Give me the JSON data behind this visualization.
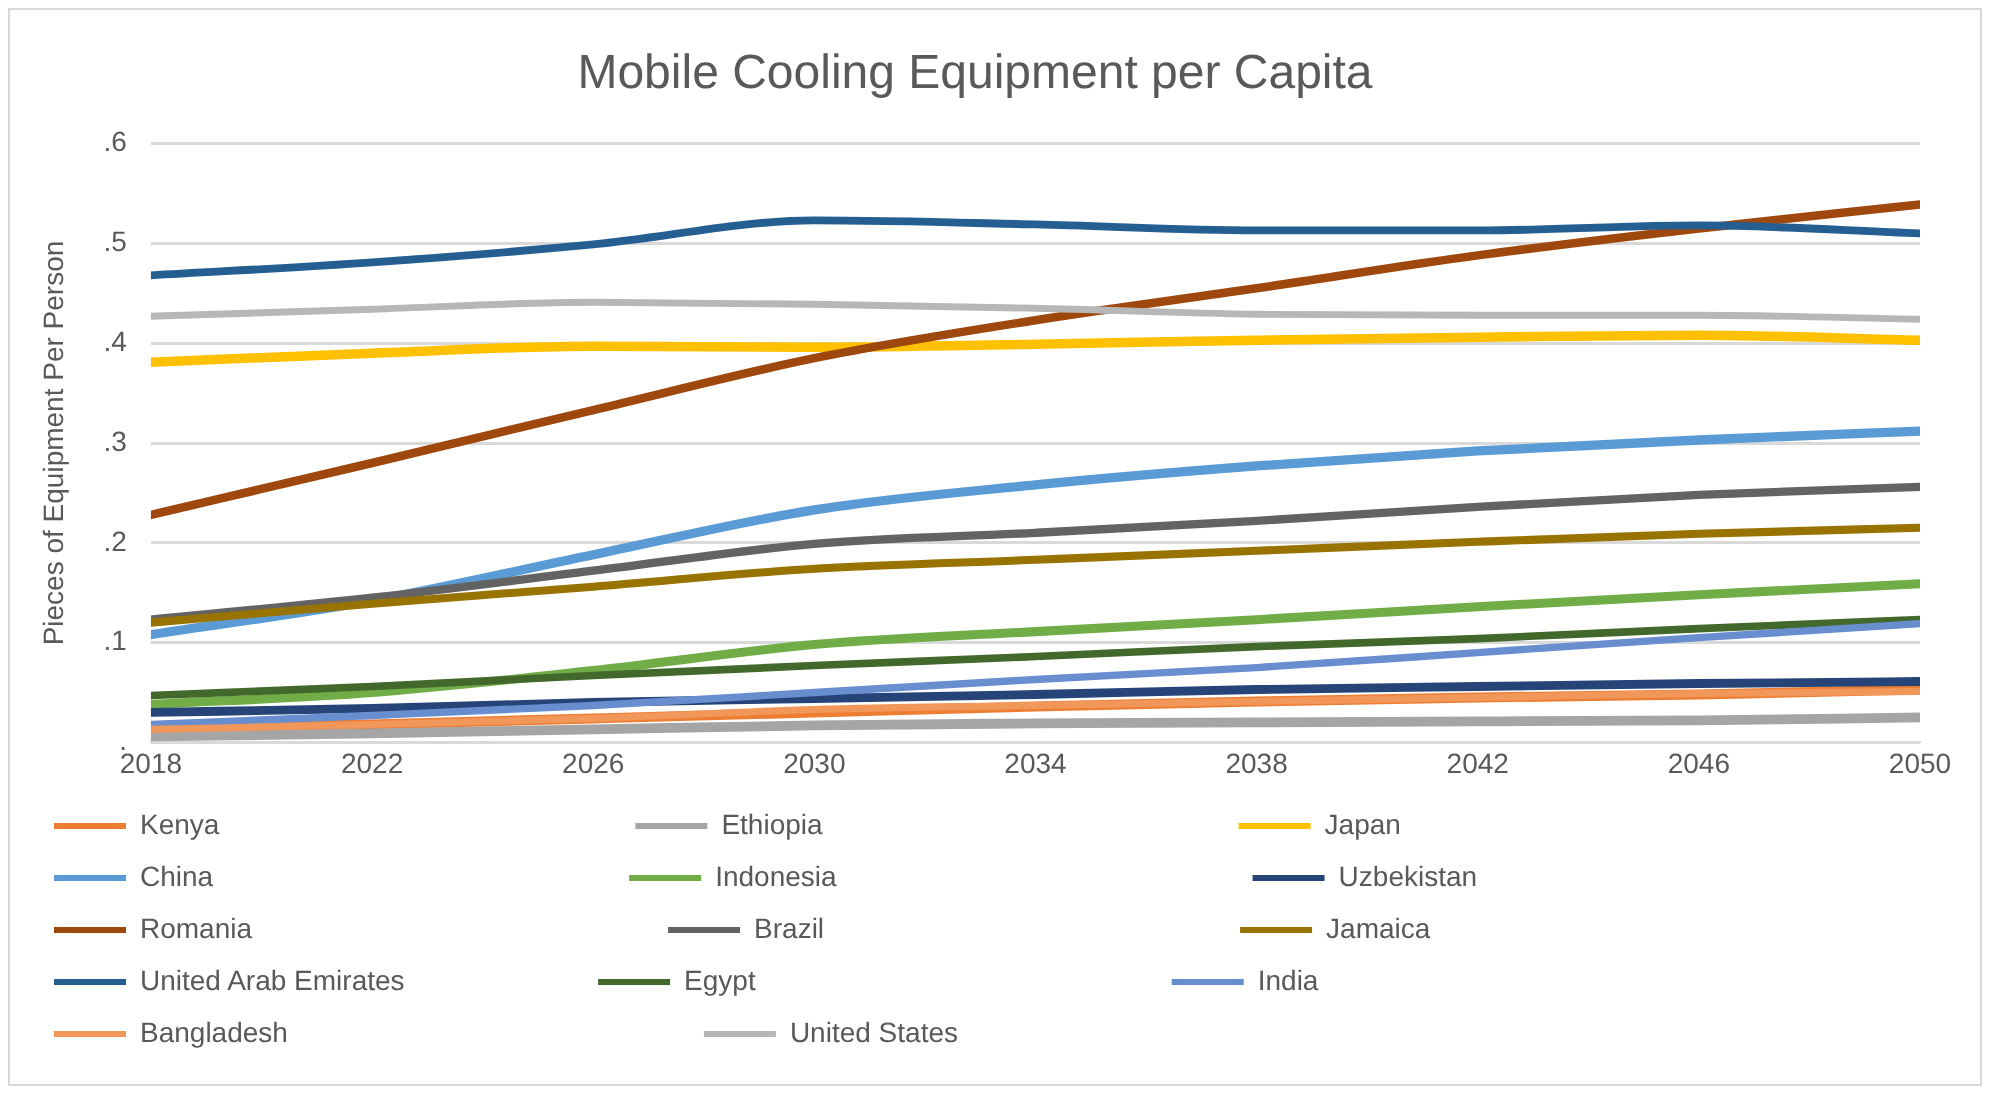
{
  "chart_data": {
    "type": "line",
    "title": "Mobile Cooling Equipment per Capita",
    "ylabel": "Pieces of Equipment Per Person",
    "x": [
      2018,
      2022,
      2026,
      2030,
      2034,
      2038,
      2042,
      2046,
      2050
    ],
    "xlim": [
      2018,
      2050
    ],
    "xticks": [
      2018,
      2022,
      2026,
      2030,
      2034,
      2038,
      2042,
      2046,
      2050
    ],
    "ylim": [
      0,
      0.6
    ],
    "yticks": [
      {
        "value": 0,
        "label": "."
      },
      {
        "value": 0.1,
        "label": ".1"
      },
      {
        "value": 0.2,
        "label": ".2"
      },
      {
        "value": 0.3,
        "label": ".3"
      },
      {
        "value": 0.4,
        "label": ".4"
      },
      {
        "value": 0.5,
        "label": ".5"
      },
      {
        "value": 0.6,
        "label": ".6"
      }
    ],
    "grid": "y",
    "legend": "bottom",
    "marker": "none",
    "line_style": "solid",
    "series": [
      {
        "name": "Kenya",
        "color": "#ed7d31",
        "values": [
          0.014,
          0.018,
          0.024,
          0.03,
          0.036,
          0.041,
          0.045,
          0.048,
          0.053
        ]
      },
      {
        "name": "Ethiopia",
        "color": "#a5a5a5",
        "values": [
          0.006,
          0.009,
          0.013,
          0.017,
          0.019,
          0.02,
          0.021,
          0.022,
          0.025
        ]
      },
      {
        "name": "Japan",
        "color": "#ffc000",
        "values": [
          0.381,
          0.39,
          0.397,
          0.396,
          0.399,
          0.403,
          0.406,
          0.408,
          0.403
        ]
      },
      {
        "name": "China",
        "color": "#5b9bd5",
        "values": [
          0.108,
          0.142,
          0.188,
          0.233,
          0.258,
          0.277,
          0.292,
          0.303,
          0.312
        ]
      },
      {
        "name": "Indonesia",
        "color": "#70ad47",
        "values": [
          0.038,
          0.05,
          0.072,
          0.098,
          0.111,
          0.123,
          0.136,
          0.148,
          0.159
        ]
      },
      {
        "name": "Uzbekistan",
        "color": "#264478",
        "values": [
          0.03,
          0.034,
          0.04,
          0.044,
          0.048,
          0.053,
          0.056,
          0.059,
          0.061
        ]
      },
      {
        "name": "Romania",
        "color": "#9e480e",
        "values": [
          0.228,
          0.28,
          0.333,
          0.385,
          0.423,
          0.455,
          0.488,
          0.515,
          0.539
        ]
      },
      {
        "name": "Brazil",
        "color": "#636363",
        "values": [
          0.123,
          0.145,
          0.172,
          0.199,
          0.21,
          0.222,
          0.236,
          0.248,
          0.256
        ]
      },
      {
        "name": "Jamaica",
        "color": "#997300",
        "values": [
          0.12,
          0.139,
          0.156,
          0.174,
          0.183,
          0.192,
          0.201,
          0.209,
          0.215
        ]
      },
      {
        "name": "United Arab Emirates",
        "color": "#255e91",
        "values": [
          0.468,
          0.481,
          0.499,
          0.523,
          0.519,
          0.513,
          0.513,
          0.518,
          0.51
        ]
      },
      {
        "name": "Egypt",
        "color": "#43682b",
        "values": [
          0.047,
          0.056,
          0.067,
          0.077,
          0.086,
          0.096,
          0.104,
          0.114,
          0.123
        ]
      },
      {
        "name": "India",
        "color": "#698ed0",
        "values": [
          0.018,
          0.027,
          0.037,
          0.05,
          0.063,
          0.075,
          0.09,
          0.105,
          0.119
        ]
      },
      {
        "name": "Bangladesh",
        "color": "#f1975a",
        "values": [
          0.013,
          0.018,
          0.024,
          0.033,
          0.037,
          0.041,
          0.045,
          0.049,
          0.051
        ]
      },
      {
        "name": "United States",
        "color": "#b7b7b7",
        "values": [
          0.427,
          0.434,
          0.441,
          0.439,
          0.435,
          0.429,
          0.428,
          0.428,
          0.424
        ]
      }
    ]
  }
}
